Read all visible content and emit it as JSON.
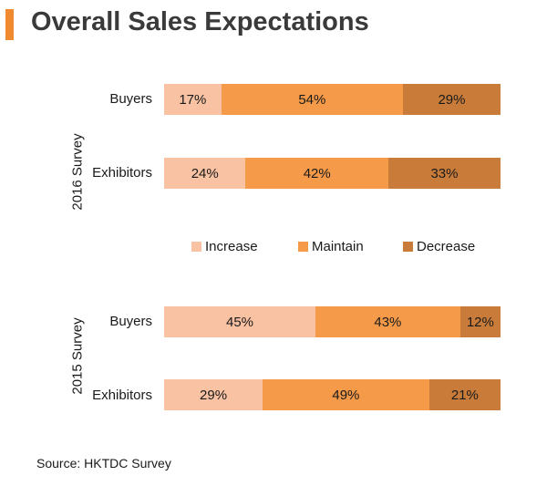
{
  "title": "Overall Sales Expectations",
  "source": "Source: HKTDC Survey",
  "colors": {
    "increase": "#f8c2a3",
    "maintain": "#f59a48",
    "decrease": "#c97c3a",
    "title_bar": "#f08a31"
  },
  "chart_data": {
    "type": "bar",
    "orientation": "horizontal",
    "stacked": true,
    "percent": true,
    "legend": [
      "Increase",
      "Maintain",
      "Decrease"
    ],
    "legend_placement": "middle",
    "groups": [
      {
        "label": "2016 Survey",
        "rows": [
          {
            "label": "Buyers",
            "values": [
              17,
              54,
              29
            ],
            "labels": [
              "17%",
              "54%",
              "29%"
            ]
          },
          {
            "label": "Exhibitors",
            "values": [
              24,
              42,
              33
            ],
            "labels": [
              "24%",
              "42%",
              "33%"
            ]
          }
        ]
      },
      {
        "label": "2015 Survey",
        "rows": [
          {
            "label": "Buyers",
            "values": [
              45,
              43,
              12
            ],
            "labels": [
              "45%",
              "43%",
              "12%"
            ]
          },
          {
            "label": "Exhibitors",
            "values": [
              29,
              49,
              21
            ],
            "labels": [
              "29%",
              "49%",
              "21%"
            ]
          }
        ]
      }
    ]
  }
}
